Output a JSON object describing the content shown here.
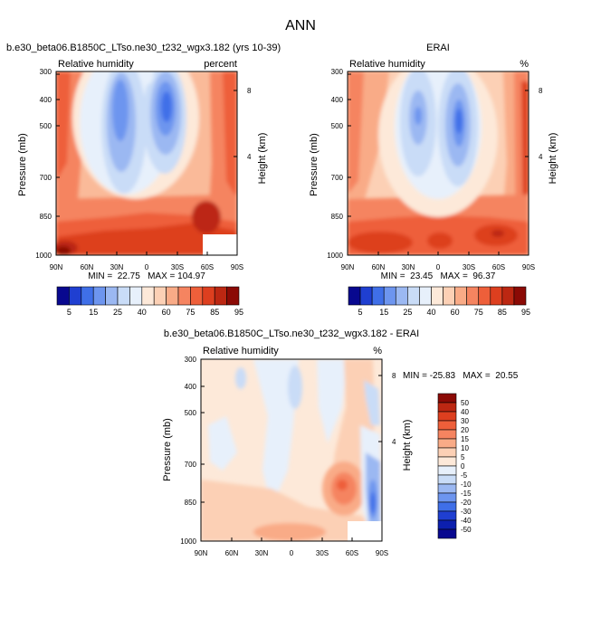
{
  "figure_title": "ANN",
  "chart_data": [
    {
      "type": "heatmap",
      "id": "model",
      "title": "b.e30_beta06.B1850C_LTso.ne30_t232_wgx3.182 (yrs 10-39)",
      "variable": "Relative humidity",
      "units": "percent",
      "xlabel": "",
      "ylabel": "Pressure (mb)",
      "ylabel_right": "Height (km)",
      "x_ticks": [
        "90N",
        "60N",
        "30N",
        "0",
        "30S",
        "60S",
        "90S"
      ],
      "y_ticks": [
        "300",
        "400",
        "500",
        "700",
        "850",
        "1000"
      ],
      "y_ticks_right": [
        "8",
        "4"
      ],
      "xlim": [
        90,
        -90
      ],
      "ylim": [
        1000,
        300
      ],
      "stats": "MIN =  22.75   MAX = 104.97",
      "min": 22.75,
      "max": 104.97,
      "features": {
        "dry_cores": [
          {
            "lat": 22,
            "p": 480,
            "value": 23
          },
          {
            "lat": -22,
            "p": 480,
            "value": 23
          }
        ],
        "moist_surface_max": {
          "lat": -60,
          "p": 920,
          "value": 105
        },
        "missing_region": {
          "lat": [
            -60,
            -90
          ],
          "p": [
            880,
            1000
          ]
        }
      }
    },
    {
      "type": "heatmap",
      "id": "obs",
      "title": "ERAI",
      "variable": "Relative humidity",
      "units": "%",
      "xlabel": "",
      "ylabel": "Pressure (mb)",
      "ylabel_right": "Height (km)",
      "x_ticks": [
        "90N",
        "60N",
        "30N",
        "0",
        "30S",
        "60S",
        "90S"
      ],
      "y_ticks": [
        "300",
        "400",
        "500",
        "700",
        "850",
        "1000"
      ],
      "y_ticks_right": [
        "8",
        "4"
      ],
      "xlim": [
        90,
        -90
      ],
      "ylim": [
        1000,
        300
      ],
      "stats": "MIN =  23.45   MAX =  96.37",
      "min": 23.45,
      "max": 96.37,
      "features": {
        "dry_cores": [
          {
            "lat": 22,
            "p": 470,
            "value": 32
          },
          {
            "lat": -22,
            "p": 490,
            "value": 23
          }
        ],
        "moist_surface_max": {
          "lat": -70,
          "p": 900,
          "value": 96
        }
      }
    },
    {
      "type": "heatmap",
      "id": "diff",
      "title": "b.e30_beta06.B1850C_LTso.ne30_t232_wgx3.182 - ERAI",
      "variable": "Relative humidity",
      "units": "%",
      "xlabel": "",
      "ylabel": "Pressure (mb)",
      "ylabel_right": "Height (km)",
      "x_ticks": [
        "90N",
        "60N",
        "30N",
        "0",
        "30S",
        "60S",
        "90S"
      ],
      "y_ticks": [
        "300",
        "400",
        "500",
        "700",
        "850",
        "1000"
      ],
      "y_ticks_right": [
        "8",
        "4"
      ],
      "xlim": [
        90,
        -90
      ],
      "ylim": [
        1000,
        300
      ],
      "stats": "MIN = -25.83   MAX =  20.55",
      "min": -25.83,
      "max": 20.55,
      "features": {
        "positive_max": {
          "lat": -45,
          "p": 780,
          "value": 20
        },
        "negative_min": {
          "lat": -82,
          "p": 800,
          "value": -25
        },
        "missing_region": {
          "lat": [
            -60,
            -90
          ],
          "p": [
            880,
            1000
          ]
        }
      }
    }
  ],
  "colorbar_main": {
    "orientation": "horizontal",
    "labels": [
      "5",
      "15",
      "25",
      "40",
      "60",
      "75",
      "85",
      "95"
    ],
    "colors": [
      "#08088f",
      "#1f3fd1",
      "#3f6fe8",
      "#6d95ef",
      "#9bb8f2",
      "#c9dcf7",
      "#e7f0fb",
      "#fde9d9",
      "#fcd0b5",
      "#f9ab87",
      "#f58460",
      "#ee5f3a",
      "#dd3f1f",
      "#bc2712",
      "#8b0a05"
    ]
  },
  "colorbar_diff": {
    "orientation": "vertical",
    "labels": [
      "50",
      "40",
      "30",
      "20",
      "15",
      "10",
      "5",
      "0",
      "-5",
      "-10",
      "-15",
      "-20",
      "-30",
      "-40",
      "-50"
    ],
    "colors": [
      "#8b0a05",
      "#bc2712",
      "#dd3f1f",
      "#ee5f3a",
      "#f58460",
      "#f9ab87",
      "#fcd0b5",
      "#fde9d9",
      "#e7f0fb",
      "#c9dcf7",
      "#9bb8f2",
      "#6d95ef",
      "#3f6fe8",
      "#1f3fd1",
      "#0c1fae",
      "#08088f"
    ]
  }
}
